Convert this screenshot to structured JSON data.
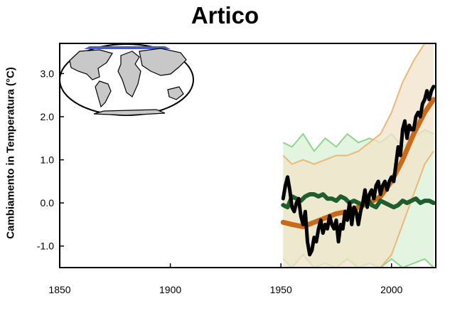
{
  "chart_data": {
    "type": "line",
    "title": "Artico",
    "xlabel": "",
    "ylabel": "Cambiamento in Temperatura (°C)",
    "xlim": [
      1850,
      2020
    ],
    "ylim": [
      -1.5,
      3.7
    ],
    "xticks": [
      "1850",
      "1900",
      "1950",
      "2000"
    ],
    "yticks": [
      "3.0",
      "2.0",
      "1.0",
      "0.0",
      "-1.0"
    ],
    "grid": false,
    "legend": "none",
    "inset": "world-map",
    "colors": {
      "observed": "#000000",
      "model_all": "#c96a1b",
      "model_all_band": "#f2e3c9",
      "model_all_edge": "#e8b978",
      "model_natural": "#1e5e2e",
      "model_natural_band": "#d9f2d6",
      "model_natural_edge": "#8fd68a",
      "map_land": "#c8c8c8",
      "map_ice": "#4a58c8"
    },
    "series": [
      {
        "key": "observed",
        "x": [
          1951,
          1952,
          1953,
          1954,
          1955,
          1956,
          1957,
          1958,
          1959,
          1960,
          1961,
          1962,
          1963,
          1964,
          1965,
          1966,
          1967,
          1968,
          1969,
          1970,
          1971,
          1972,
          1973,
          1974,
          1975,
          1976,
          1977,
          1978,
          1979,
          1980,
          1981,
          1982,
          1983,
          1984,
          1985,
          1986,
          1987,
          1988,
          1989,
          1990,
          1991,
          1992,
          1993,
          1994,
          1995,
          1996,
          1997,
          1998,
          1999,
          2000,
          2001,
          2002,
          2003,
          2004,
          2005,
          2006,
          2007,
          2008,
          2009,
          2010,
          2011,
          2012,
          2013,
          2014,
          2015,
          2016,
          2017,
          2018,
          2019
        ],
        "y": [
          0.1,
          0.4,
          0.6,
          0.3,
          -0.1,
          -0.2,
          0.0,
          0.1,
          -0.3,
          -0.5,
          -0.2,
          -0.9,
          -1.2,
          -1.1,
          -0.8,
          -0.9,
          -0.6,
          -0.4,
          -0.7,
          -0.5,
          -0.6,
          -0.3,
          -0.5,
          -0.6,
          -0.4,
          -0.9,
          -0.5,
          -0.6,
          -0.2,
          -0.4,
          0.0,
          -0.5,
          -0.1,
          -0.2,
          -0.5,
          -0.2,
          0.0,
          0.3,
          -0.1,
          0.2,
          0.3,
          0.1,
          0.4,
          0.5,
          0.2,
          0.4,
          0.5,
          0.3,
          0.5,
          0.6,
          0.5,
          0.9,
          1.3,
          1.1,
          1.7,
          1.9,
          1.5,
          1.8,
          1.7,
          1.7,
          2.0,
          2.1,
          2.0,
          2.3,
          2.4,
          2.6,
          2.4,
          2.6,
          2.7
        ]
      },
      {
        "key": "model_all",
        "x": [
          1951,
          1955,
          1960,
          1965,
          1970,
          1975,
          1980,
          1985,
          1990,
          1995,
          2000,
          2005,
          2010,
          2015,
          2019
        ],
        "y": [
          -0.45,
          -0.5,
          -0.55,
          -0.45,
          -0.35,
          -0.25,
          -0.2,
          -0.1,
          0.0,
          0.15,
          0.5,
          1.0,
          1.6,
          2.1,
          2.4
        ]
      },
      {
        "key": "model_natural",
        "x": [
          1951,
          1953,
          1955,
          1957,
          1959,
          1961,
          1963,
          1965,
          1967,
          1969,
          1971,
          1973,
          1975,
          1977,
          1979,
          1981,
          1983,
          1985,
          1987,
          1989,
          1991,
          1993,
          1995,
          1997,
          1999,
          2001,
          2003,
          2005,
          2007,
          2009,
          2011,
          2013,
          2015,
          2017,
          2019
        ],
        "y": [
          -0.05,
          -0.1,
          0.15,
          0.1,
          0.05,
          0.15,
          0.2,
          0.2,
          0.15,
          0.2,
          0.1,
          0.1,
          0.05,
          0.15,
          0.1,
          0.0,
          0.05,
          0.0,
          -0.05,
          0.1,
          -0.05,
          -0.1,
          0.05,
          0.0,
          -0.05,
          -0.1,
          -0.05,
          0.05,
          0.0,
          0.05,
          0.1,
          0.0,
          0.05,
          0.05,
          0.0
        ]
      }
    ],
    "bands": [
      {
        "key": "model_natural",
        "x": [
          1951,
          1955,
          1960,
          1965,
          1970,
          1975,
          1980,
          1985,
          1990,
          1995,
          2000,
          2005,
          2010,
          2015,
          2019
        ],
        "low": [
          -1.3,
          -1.5,
          -1.2,
          -1.5,
          -1.4,
          -1.5,
          -1.3,
          -1.5,
          -1.4,
          -1.5,
          -1.3,
          -1.5,
          -1.4,
          -1.3,
          -1.5
        ],
        "high": [
          1.4,
          1.3,
          1.6,
          1.2,
          1.5,
          1.3,
          1.6,
          1.4,
          1.5,
          1.4,
          1.6,
          1.3,
          1.5,
          1.7,
          1.6
        ]
      },
      {
        "key": "model_all",
        "x": [
          1951,
          1955,
          1960,
          1965,
          1970,
          1975,
          1980,
          1985,
          1990,
          1995,
          2000,
          2005,
          2010,
          2015,
          2019
        ],
        "low": [
          -1.5,
          -1.5,
          -1.5,
          -1.5,
          -1.5,
          -1.5,
          -1.5,
          -1.5,
          -1.5,
          -1.5,
          -1.2,
          -0.5,
          0.2,
          0.9,
          1.2
        ],
        "high": [
          1.1,
          0.9,
          1.0,
          0.9,
          1.0,
          1.1,
          1.1,
          1.2,
          1.4,
          1.6,
          2.1,
          2.8,
          3.3,
          3.7,
          3.7
        ]
      }
    ]
  }
}
